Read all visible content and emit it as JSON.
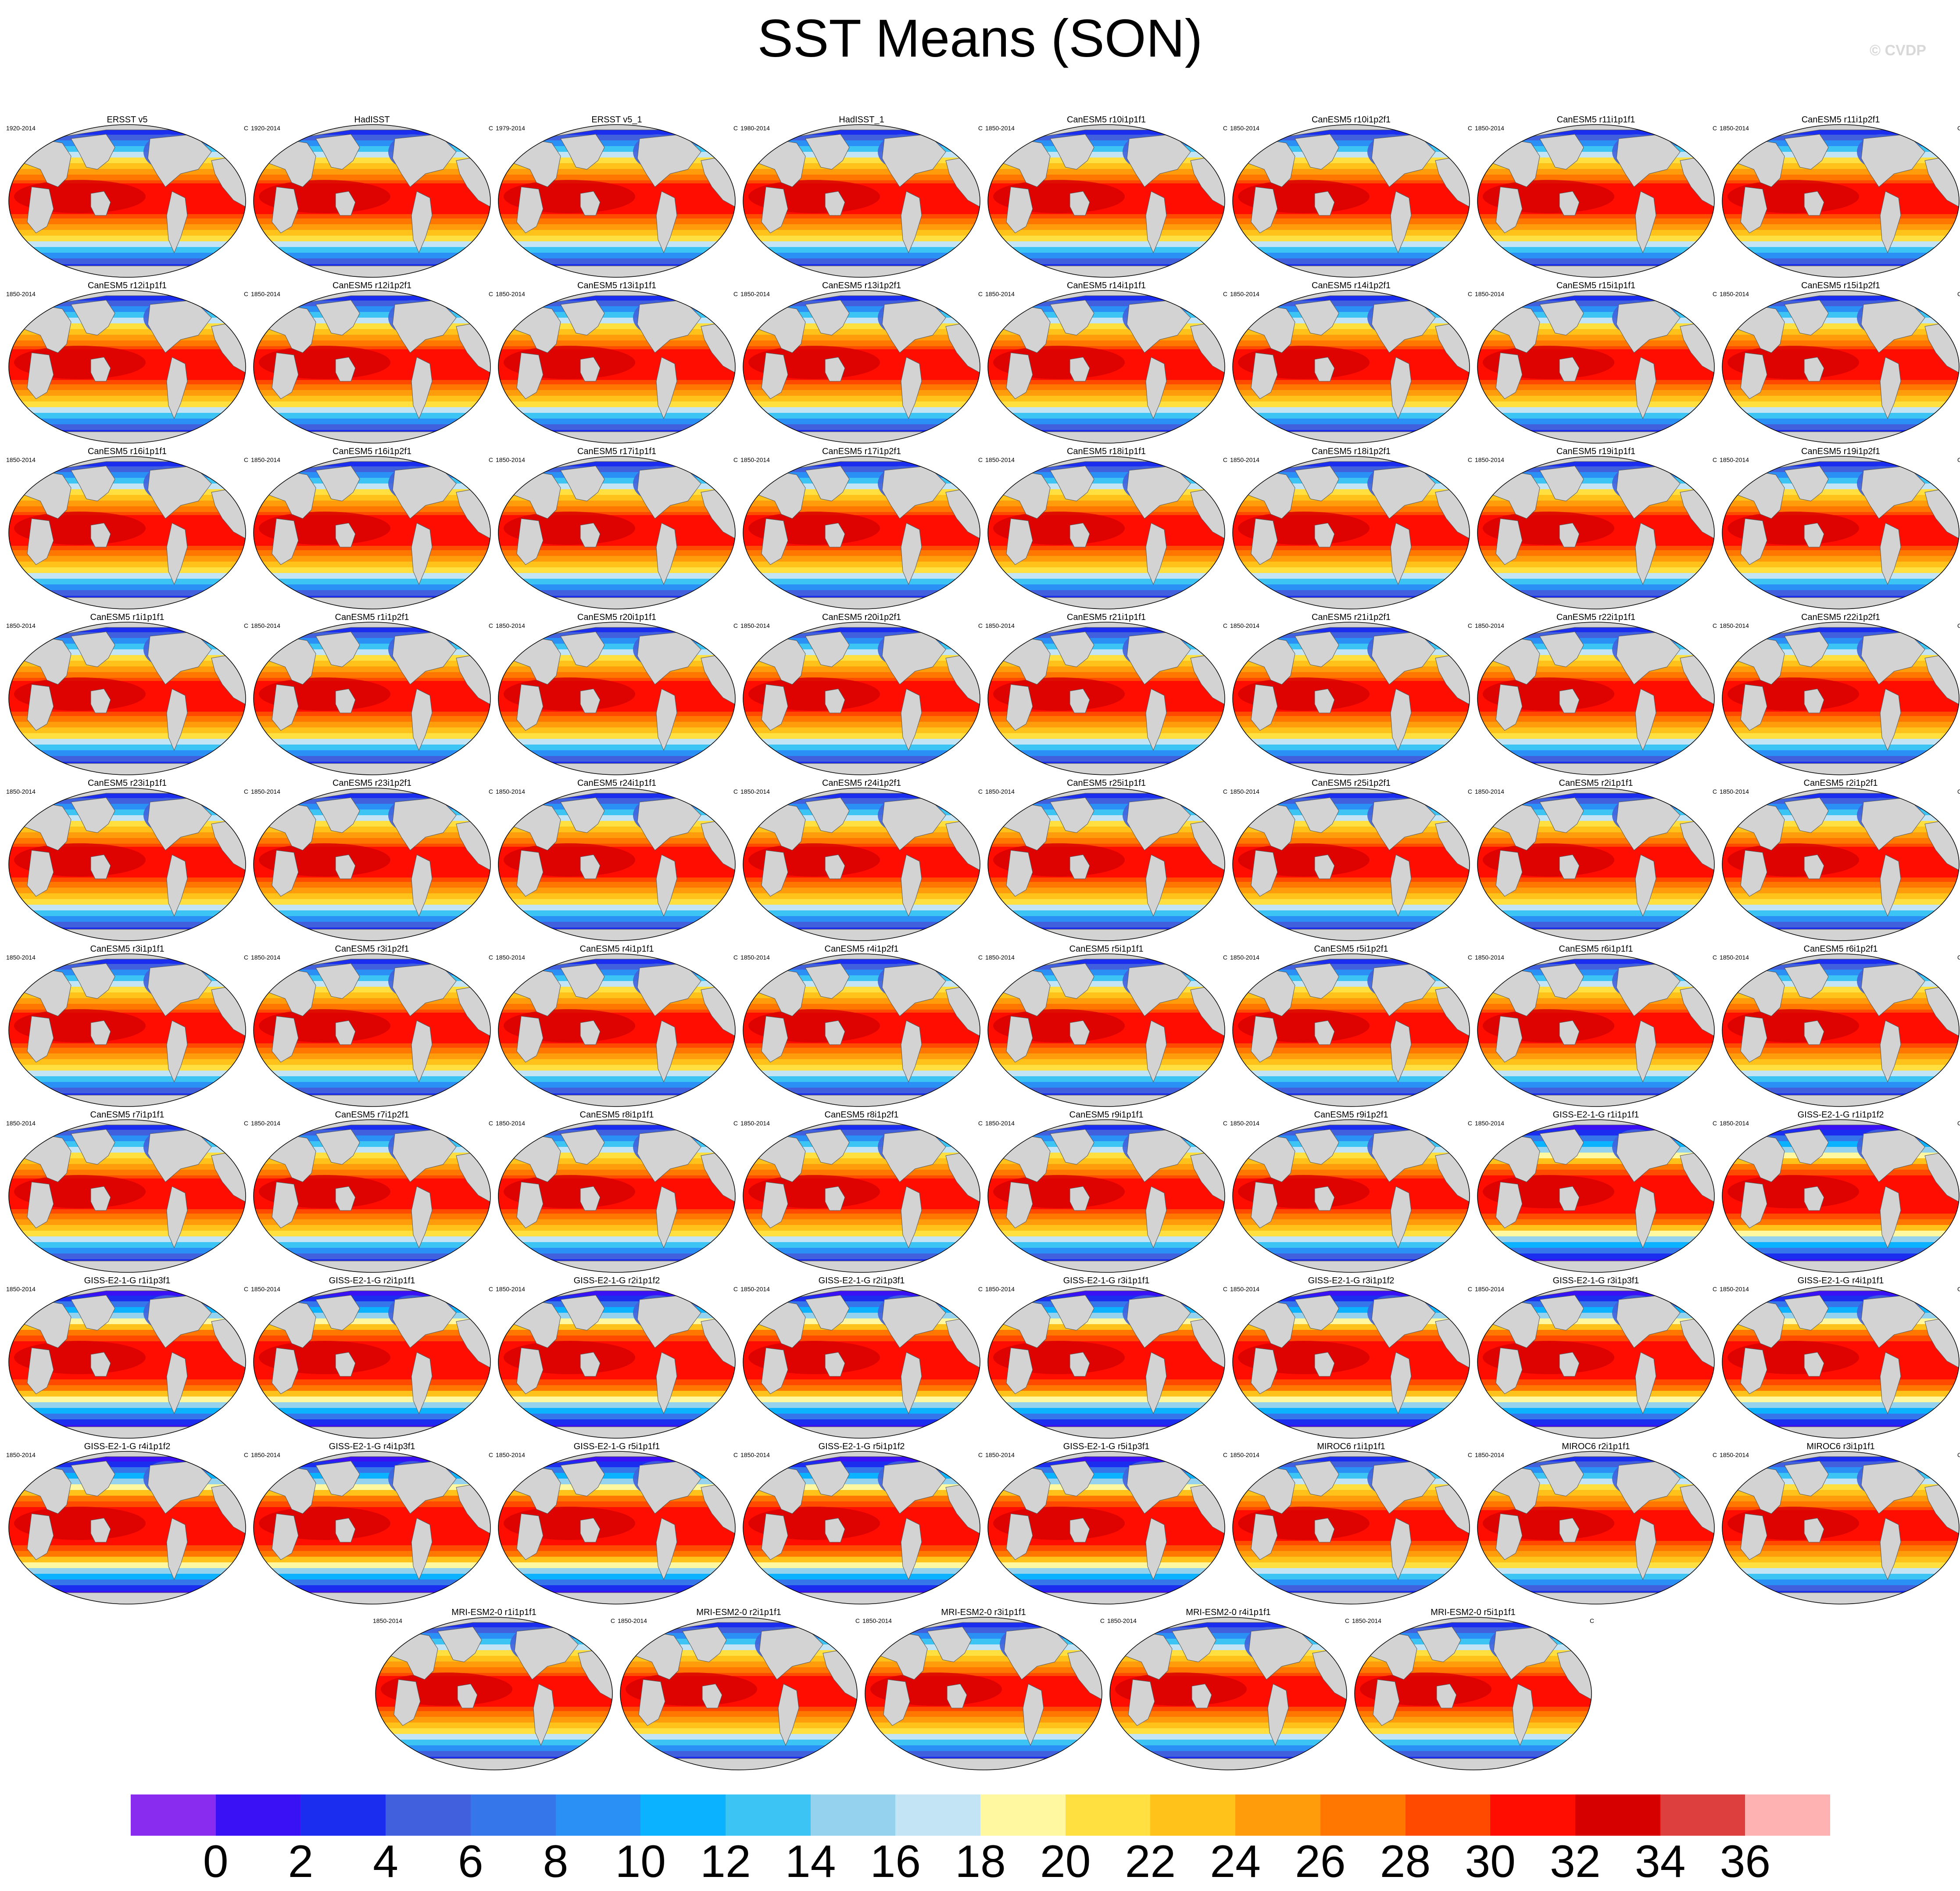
{
  "title": "SST Means (SON)",
  "watermark": "© CVDP",
  "chart_data": {
    "type": "heatmap",
    "title": "SST Means (SON)",
    "units": "C",
    "colorbar": {
      "ticks": [
        "0",
        "2",
        "4",
        "6",
        "8",
        "10",
        "12",
        "14",
        "16",
        "18",
        "20",
        "22",
        "24",
        "26",
        "28",
        "30",
        "32",
        "34",
        "36"
      ],
      "colors": [
        "#8a2cf0",
        "#3a10f5",
        "#1b2ef0",
        "#4060dd",
        "#3576ea",
        "#2b90f5",
        "#0ab2ff",
        "#3cc4f4",
        "#94d2ee",
        "#c2e4f4",
        "#fff8a0",
        "#ffe040",
        "#ffc21a",
        "#ff9c0c",
        "#ff7700",
        "#ff4a00",
        "#ff0d00",
        "#d60000",
        "#dd3f3f",
        "#ffb2b2"
      ]
    },
    "panels": [
      {
        "name": "ERSST v5",
        "period": "1920-2014",
        "units": "C"
      },
      {
        "name": "HadISST",
        "period": "1920-2014",
        "units": "C"
      },
      {
        "name": "ERSST v5_1",
        "period": "1979-2014",
        "units": "C"
      },
      {
        "name": "HadISST_1",
        "period": "1980-2014",
        "units": "C"
      },
      {
        "name": "CanESM5 r10i1p1f1",
        "period": "1850-2014",
        "units": "C"
      },
      {
        "name": "CanESM5 r10i1p2f1",
        "period": "1850-2014",
        "units": "C"
      },
      {
        "name": "CanESM5 r11i1p1f1",
        "period": "1850-2014",
        "units": "C"
      },
      {
        "name": "CanESM5 r11i1p2f1",
        "period": "1850-2014",
        "units": "C"
      },
      {
        "name": "CanESM5 r12i1p1f1",
        "period": "1850-2014",
        "units": "C"
      },
      {
        "name": "CanESM5 r12i1p2f1",
        "period": "1850-2014",
        "units": "C"
      },
      {
        "name": "CanESM5 r13i1p1f1",
        "period": "1850-2014",
        "units": "C"
      },
      {
        "name": "CanESM5 r13i1p2f1",
        "period": "1850-2014",
        "units": "C"
      },
      {
        "name": "CanESM5 r14i1p1f1",
        "period": "1850-2014",
        "units": "C"
      },
      {
        "name": "CanESM5 r14i1p2f1",
        "period": "1850-2014",
        "units": "C"
      },
      {
        "name": "CanESM5 r15i1p1f1",
        "period": "1850-2014",
        "units": "C"
      },
      {
        "name": "CanESM5 r15i1p2f1",
        "period": "1850-2014",
        "units": "C"
      },
      {
        "name": "CanESM5 r16i1p1f1",
        "period": "1850-2014",
        "units": "C"
      },
      {
        "name": "CanESM5 r16i1p2f1",
        "period": "1850-2014",
        "units": "C"
      },
      {
        "name": "CanESM5 r17i1p1f1",
        "period": "1850-2014",
        "units": "C"
      },
      {
        "name": "CanESM5 r17i1p2f1",
        "period": "1850-2014",
        "units": "C"
      },
      {
        "name": "CanESM5 r18i1p1f1",
        "period": "1850-2014",
        "units": "C"
      },
      {
        "name": "CanESM5 r18i1p2f1",
        "period": "1850-2014",
        "units": "C"
      },
      {
        "name": "CanESM5 r19i1p1f1",
        "period": "1850-2014",
        "units": "C"
      },
      {
        "name": "CanESM5 r19i1p2f1",
        "period": "1850-2014",
        "units": "C"
      },
      {
        "name": "CanESM5 r1i1p1f1",
        "period": "1850-2014",
        "units": "C"
      },
      {
        "name": "CanESM5 r1i1p2f1",
        "period": "1850-2014",
        "units": "C"
      },
      {
        "name": "CanESM5 r20i1p1f1",
        "period": "1850-2014",
        "units": "C"
      },
      {
        "name": "CanESM5 r20i1p2f1",
        "period": "1850-2014",
        "units": "C"
      },
      {
        "name": "CanESM5 r21i1p1f1",
        "period": "1850-2014",
        "units": "C"
      },
      {
        "name": "CanESM5 r21i1p2f1",
        "period": "1850-2014",
        "units": "C"
      },
      {
        "name": "CanESM5 r22i1p1f1",
        "period": "1850-2014",
        "units": "C"
      },
      {
        "name": "CanESM5 r22i1p2f1",
        "period": "1850-2014",
        "units": "C"
      },
      {
        "name": "CanESM5 r23i1p1f1",
        "period": "1850-2014",
        "units": "C"
      },
      {
        "name": "CanESM5 r23i1p2f1",
        "period": "1850-2014",
        "units": "C"
      },
      {
        "name": "CanESM5 r24i1p1f1",
        "period": "1850-2014",
        "units": "C"
      },
      {
        "name": "CanESM5 r24i1p2f1",
        "period": "1850-2014",
        "units": "C"
      },
      {
        "name": "CanESM5 r25i1p1f1",
        "period": "1850-2014",
        "units": "C"
      },
      {
        "name": "CanESM5 r25i1p2f1",
        "period": "1850-2014",
        "units": "C"
      },
      {
        "name": "CanESM5 r2i1p1f1",
        "period": "1850-2014",
        "units": "C"
      },
      {
        "name": "CanESM5 r2i1p2f1",
        "period": "1850-2014",
        "units": "C"
      },
      {
        "name": "CanESM5 r3i1p1f1",
        "period": "1850-2014",
        "units": "C"
      },
      {
        "name": "CanESM5 r3i1p2f1",
        "period": "1850-2014",
        "units": "C"
      },
      {
        "name": "CanESM5 r4i1p1f1",
        "period": "1850-2014",
        "units": "C"
      },
      {
        "name": "CanESM5 r4i1p2f1",
        "period": "1850-2014",
        "units": "C"
      },
      {
        "name": "CanESM5 r5i1p1f1",
        "period": "1850-2014",
        "units": "C"
      },
      {
        "name": "CanESM5 r5i1p2f1",
        "period": "1850-2014",
        "units": "C"
      },
      {
        "name": "CanESM5 r6i1p1f1",
        "period": "1850-2014",
        "units": "C"
      },
      {
        "name": "CanESM5 r6i1p2f1",
        "period": "1850-2014",
        "units": "C"
      },
      {
        "name": "CanESM5 r7i1p1f1",
        "period": "1850-2014",
        "units": "C"
      },
      {
        "name": "CanESM5 r7i1p2f1",
        "period": "1850-2014",
        "units": "C"
      },
      {
        "name": "CanESM5 r8i1p1f1",
        "period": "1850-2014",
        "units": "C"
      },
      {
        "name": "CanESM5 r8i1p2f1",
        "period": "1850-2014",
        "units": "C"
      },
      {
        "name": "CanESM5 r9i1p1f1",
        "period": "1850-2014",
        "units": "C"
      },
      {
        "name": "CanESM5 r9i1p2f1",
        "period": "1850-2014",
        "units": "C"
      },
      {
        "name": "GISS-E2-1-G r1i1p1f1",
        "period": "1850-2014",
        "units": "C"
      },
      {
        "name": "GISS-E2-1-G r1i1p1f2",
        "period": "1850-2014",
        "units": "C"
      },
      {
        "name": "GISS-E2-1-G r1i1p3f1",
        "period": "1850-2014",
        "units": "C"
      },
      {
        "name": "GISS-E2-1-G r2i1p1f1",
        "period": "1850-2014",
        "units": "C"
      },
      {
        "name": "GISS-E2-1-G r2i1p1f2",
        "period": "1850-2014",
        "units": "C"
      },
      {
        "name": "GISS-E2-1-G r2i1p3f1",
        "period": "1850-2014",
        "units": "C"
      },
      {
        "name": "GISS-E2-1-G r3i1p1f1",
        "period": "1850-2014",
        "units": "C"
      },
      {
        "name": "GISS-E2-1-G r3i1p1f2",
        "period": "1850-2014",
        "units": "C"
      },
      {
        "name": "GISS-E2-1-G r3i1p3f1",
        "period": "1850-2014",
        "units": "C"
      },
      {
        "name": "GISS-E2-1-G r4i1p1f1",
        "period": "1850-2014",
        "units": "C"
      },
      {
        "name": "GISS-E2-1-G r4i1p1f2",
        "period": "1850-2014",
        "units": "C"
      },
      {
        "name": "GISS-E2-1-G r4i1p3f1",
        "period": "1850-2014",
        "units": "C"
      },
      {
        "name": "GISS-E2-1-G r5i1p1f1",
        "period": "1850-2014",
        "units": "C"
      },
      {
        "name": "GISS-E2-1-G r5i1p1f2",
        "period": "1850-2014",
        "units": "C"
      },
      {
        "name": "GISS-E2-1-G r5i1p3f1",
        "period": "1850-2014",
        "units": "C"
      },
      {
        "name": "MIROC6 r1i1p1f1",
        "period": "1850-2014",
        "units": "C"
      },
      {
        "name": "MIROC6 r2i1p1f1",
        "period": "1850-2014",
        "units": "C"
      },
      {
        "name": "MIROC6 r3i1p1f1",
        "period": "1850-2014",
        "units": "C"
      },
      {
        "name": "MRI-ESM2-0 r1i1p1f1",
        "period": "1850-2014",
        "units": "C"
      },
      {
        "name": "MRI-ESM2-0 r2i1p1f1",
        "period": "1850-2014",
        "units": "C"
      },
      {
        "name": "MRI-ESM2-0 r3i1p1f1",
        "period": "1850-2014",
        "units": "C"
      },
      {
        "name": "MRI-ESM2-0 r4i1p1f1",
        "period": "1850-2014",
        "units": "C"
      },
      {
        "name": "MRI-ESM2-0 r5i1p1f1",
        "period": "1850-2014",
        "units": "C"
      }
    ]
  }
}
